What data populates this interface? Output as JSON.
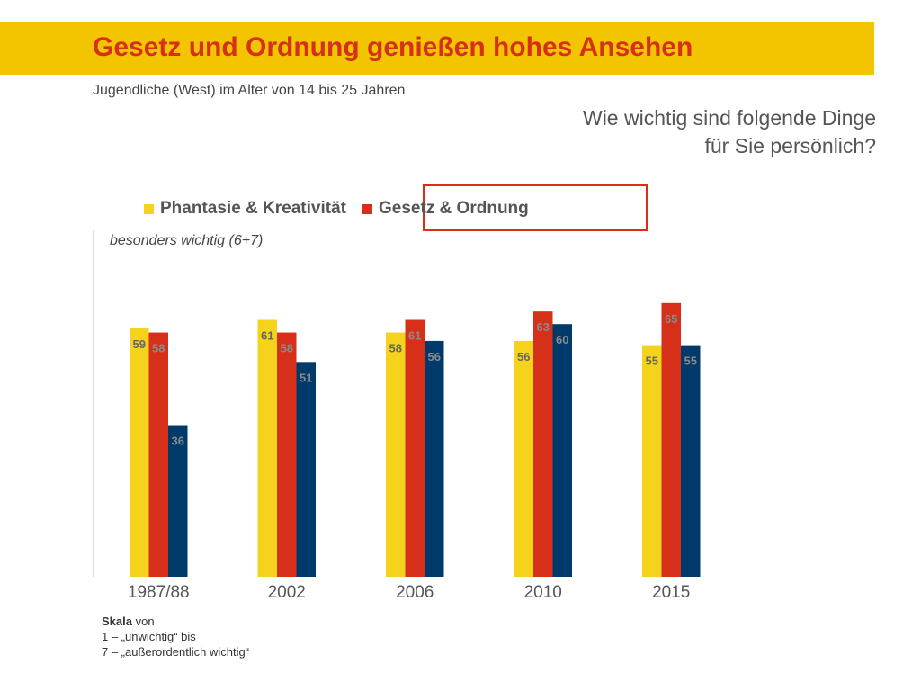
{
  "header": {
    "title": "Gesetz und Ordnung genießen hohes Ansehen",
    "subtitle": "Jugendliche (West) im Alter von 14 bis 25 Jahren"
  },
  "question": {
    "line1": "Wie wichtig sind folgende Dinge",
    "line2": "für Sie persönlich?"
  },
  "colors": {
    "banner": "#f2c500",
    "title": "#d7301a",
    "highlight": "#d7301a"
  },
  "scale_note": {
    "label": "Skala",
    "label_suffix": " von",
    "line1": "1 – „unwichtig“ bis",
    "line2": "7 – „außerordentlich wichtig“"
  },
  "chart_data": {
    "type": "bar",
    "subtitle": "besonders wichtig (6+7)",
    "categories": [
      "1987/88",
      "2002",
      "2006",
      "2010",
      "2015"
    ],
    "series": [
      {
        "name": "Phantasie & Kreativität",
        "color": "#f5d21c",
        "values": [
          59,
          61,
          58,
          56,
          55
        ]
      },
      {
        "name": "Gesetz & Ordnung",
        "color": "#d7301a",
        "values": [
          58,
          58,
          61,
          63,
          65
        ]
      },
      {
        "name": "",
        "color": "#003a6b",
        "values": [
          36,
          51,
          56,
          60,
          55
        ]
      }
    ],
    "ylim": [
      0,
      75
    ],
    "grid": false,
    "legend_position": "top"
  }
}
